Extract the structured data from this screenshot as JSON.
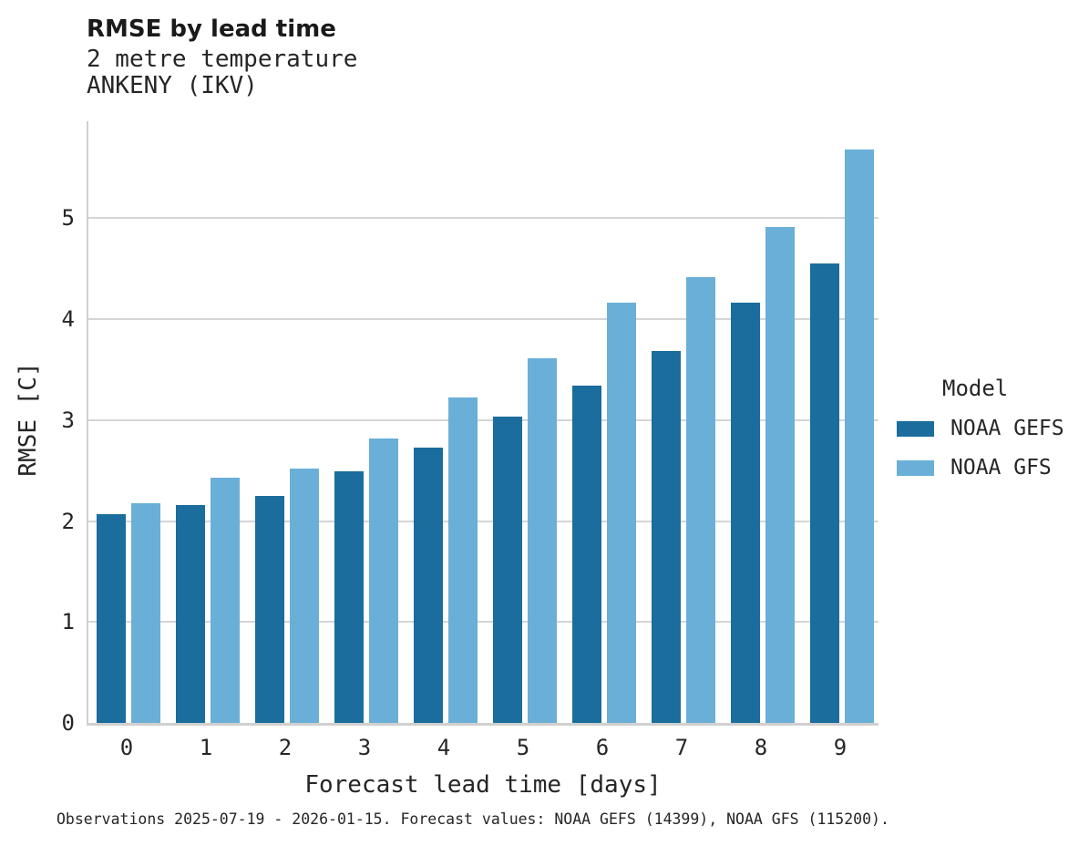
{
  "chart_data": {
    "type": "bar",
    "title": "RMSE by lead time",
    "subtitle_lines": [
      "2 metre temperature",
      "ANKENY (IKV)"
    ],
    "xlabel": "Forecast lead time [days]",
    "ylabel": "RMSE [C]",
    "categories": [
      "0",
      "1",
      "2",
      "3",
      "4",
      "5",
      "6",
      "7",
      "8",
      "9"
    ],
    "series": [
      {
        "name": "NOAA GEFS",
        "color": "#1a6d9c",
        "values": [
          2.07,
          2.16,
          2.25,
          2.49,
          2.73,
          3.03,
          3.34,
          3.68,
          4.16,
          4.55
        ]
      },
      {
        "name": "NOAA GFS",
        "color": "#6aafd8",
        "values": [
          2.18,
          2.43,
          2.52,
          2.82,
          3.22,
          3.61,
          4.16,
          4.42,
          4.91,
          5.68
        ]
      }
    ],
    "ylim": [
      0,
      5.96
    ],
    "yticks": [
      0,
      1,
      2,
      3,
      4,
      5
    ],
    "grid": "horizontal",
    "legend_title": "Model",
    "legend_position": "right",
    "caption": "Observations 2025-07-19 - 2026-01-15. Forecast values: NOAA GEFS (14399), NOAA GFS (115200)."
  },
  "colors": {
    "background": "#ffffff",
    "gridline": "#d5d5d5",
    "axis": "#d0d0d0",
    "text": "#262626"
  }
}
